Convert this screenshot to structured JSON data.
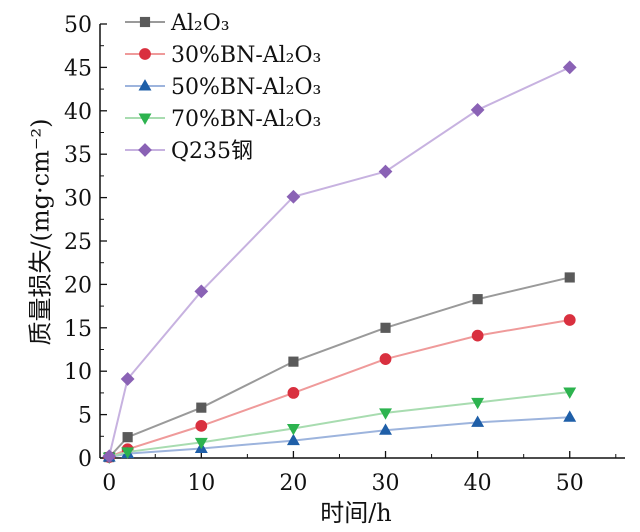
{
  "chart_data": {
    "type": "line",
    "xlabel": "时间/h",
    "ylabel": "质量损失/(mg·cm⁻²)",
    "xlim": [
      -1,
      56
    ],
    "ylim": [
      0,
      50
    ],
    "xticks": [
      0,
      10,
      20,
      30,
      40,
      50
    ],
    "yticks": [
      0,
      5,
      10,
      15,
      20,
      25,
      30,
      35,
      40,
      45,
      50
    ],
    "x": [
      0,
      2,
      10,
      20,
      30,
      40,
      50
    ],
    "grid": false,
    "legend_position": "top-left",
    "series": [
      {
        "name": "Al₂O₃",
        "values": [
          0.1,
          2.4,
          5.8,
          11.1,
          15.0,
          18.3,
          20.8
        ],
        "color": "#5a5a5a",
        "line_color": "#9a9a9a",
        "marker": "square"
      },
      {
        "name": "30%BN-Al₂O₃",
        "values": [
          0.1,
          1.0,
          3.7,
          7.5,
          11.4,
          14.1,
          15.9
        ],
        "color": "#d9303f",
        "line_color": "#ef9a9a",
        "marker": "circle"
      },
      {
        "name": "50%BN-Al₂O₃",
        "values": [
          0.1,
          0.5,
          1.1,
          2.0,
          3.2,
          4.1,
          4.7
        ],
        "color": "#1f5fa8",
        "line_color": "#9db4dd",
        "marker": "triangle-up"
      },
      {
        "name": "70%BN-Al₂O₃",
        "values": [
          0.1,
          0.7,
          1.8,
          3.4,
          5.2,
          6.4,
          7.6
        ],
        "color": "#2db34f",
        "line_color": "#a8dcb0",
        "marker": "triangle-down"
      },
      {
        "name": "Q235钢",
        "values": [
          0.2,
          9.1,
          19.2,
          30.1,
          33.0,
          40.1,
          45.0
        ],
        "color": "#8a62b5",
        "line_color": "#c7b2e0",
        "marker": "diamond"
      }
    ]
  }
}
